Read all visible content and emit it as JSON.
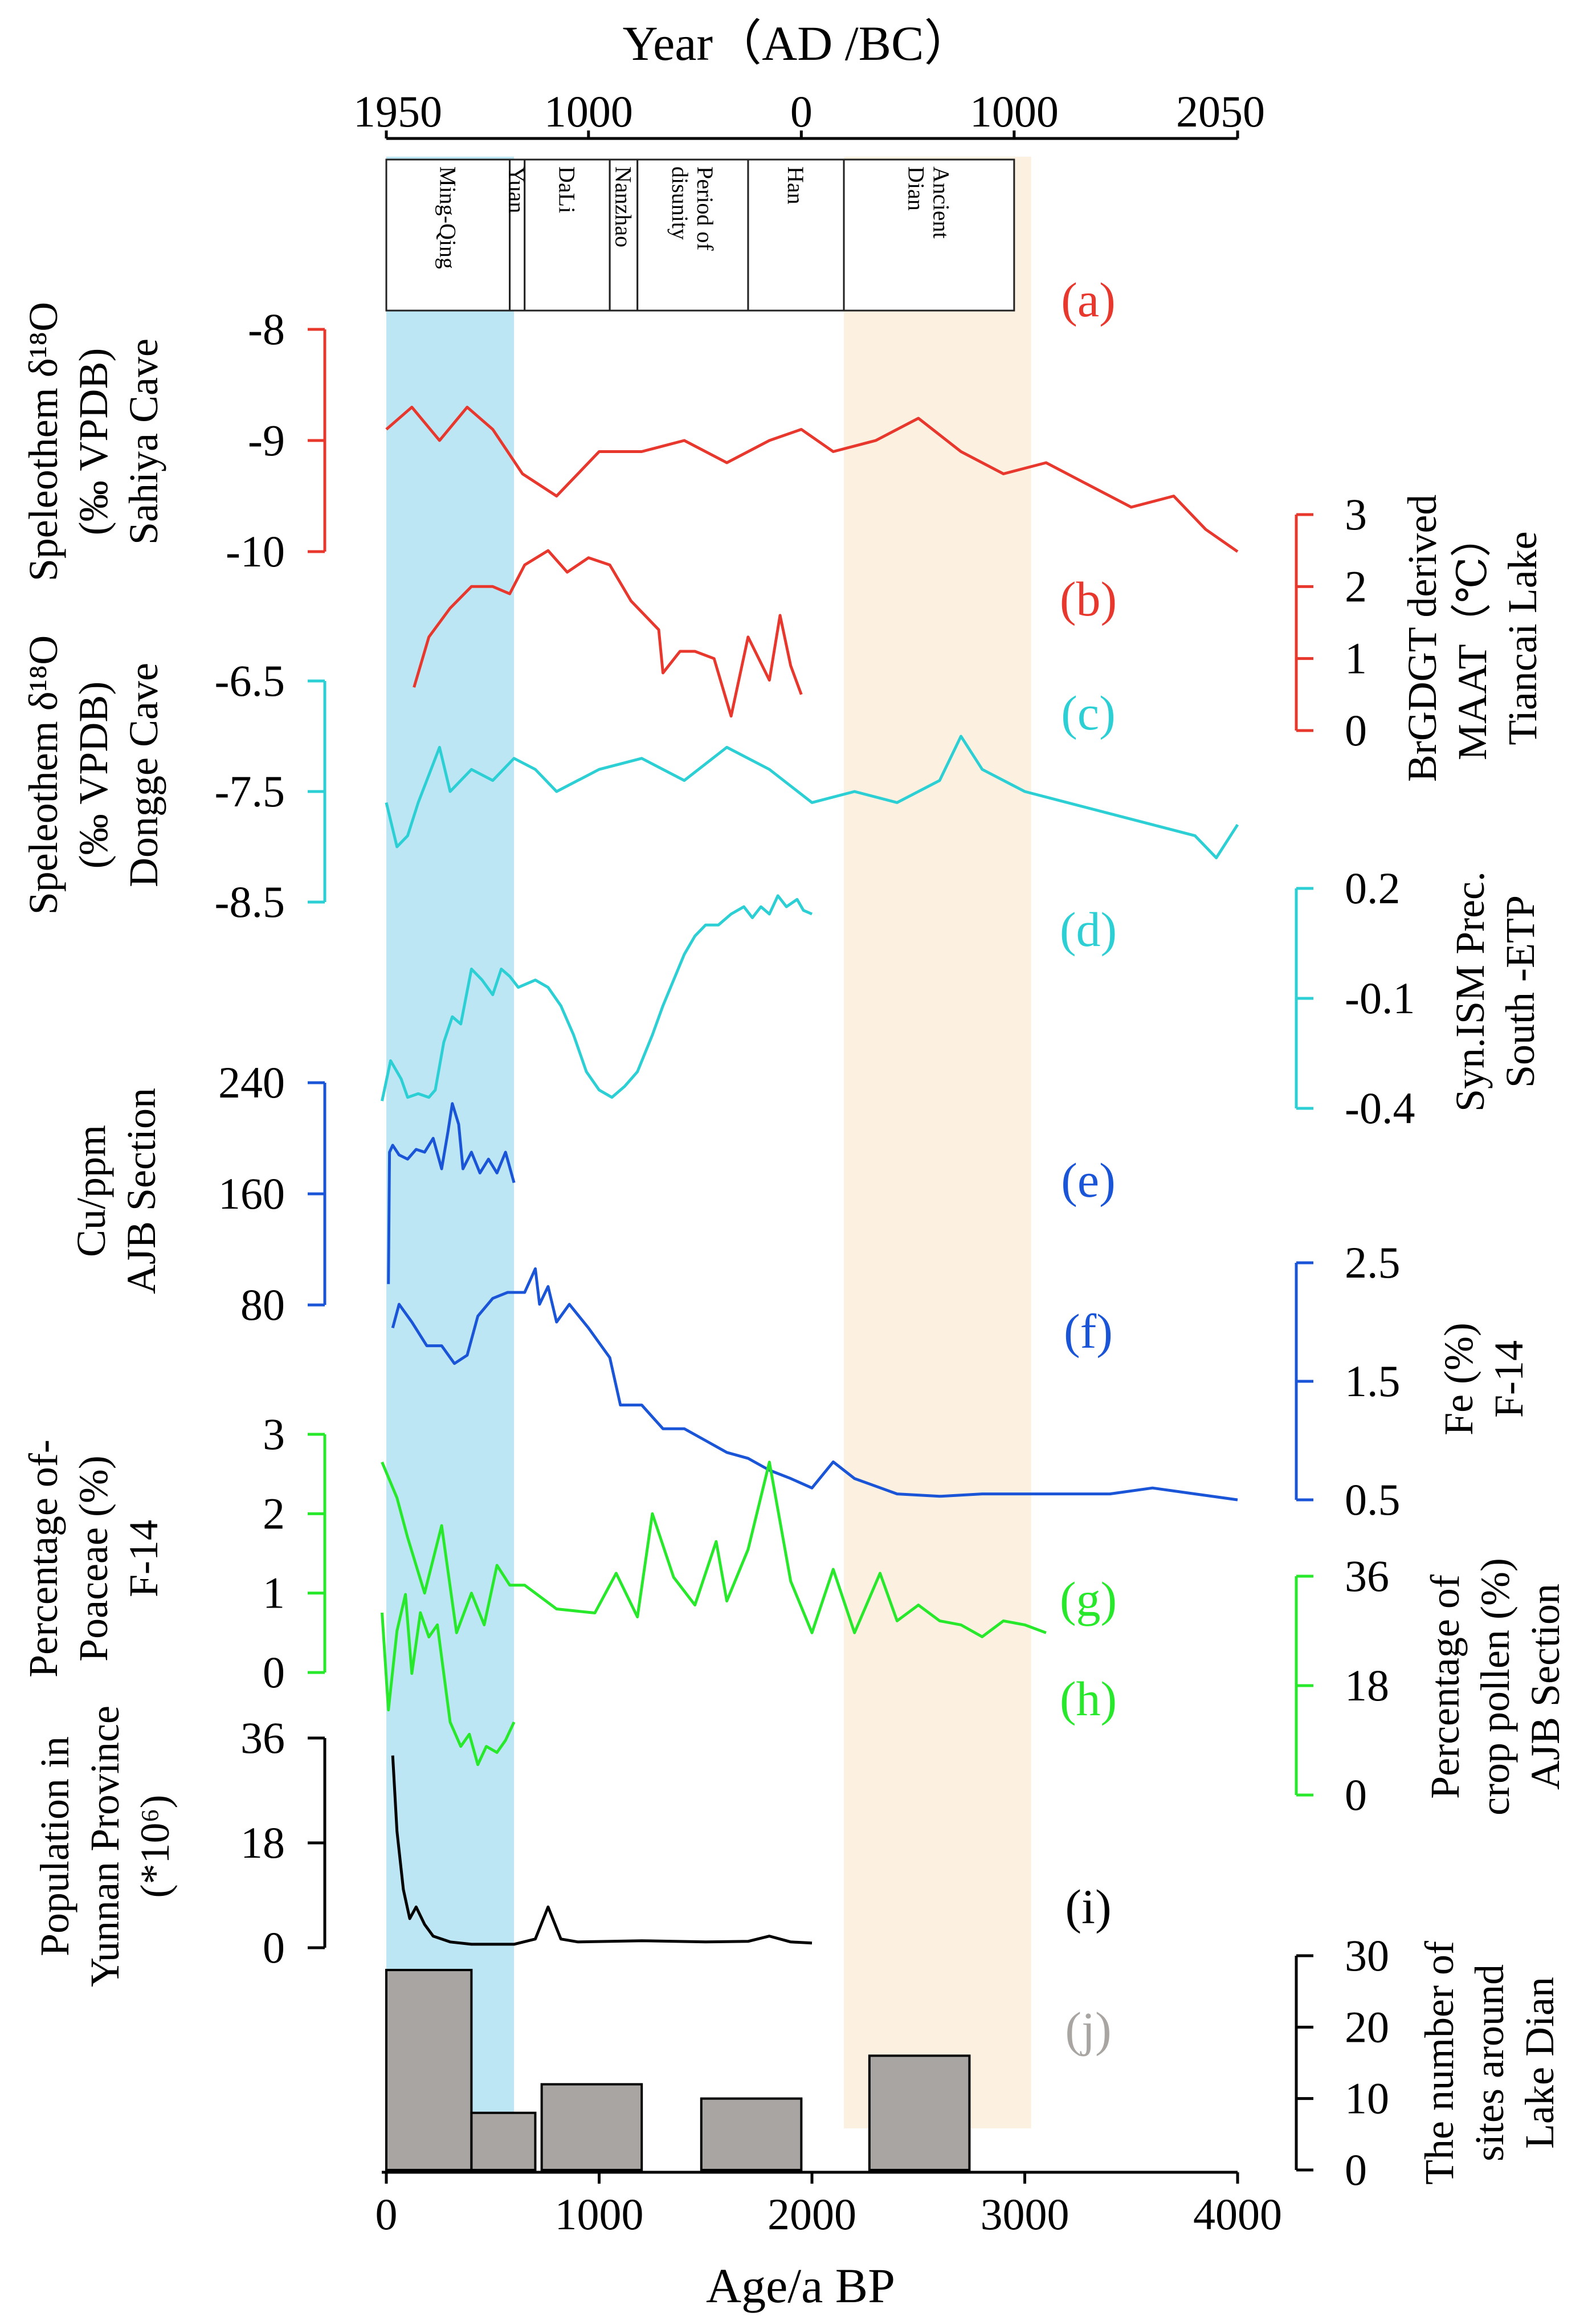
{
  "chart_data": {
    "type": "line",
    "title": "",
    "top_axis": {
      "title": "Year（AD /BC）",
      "tick_labels": [
        "1950",
        "1000",
        "0",
        "1000",
        "2050"
      ],
      "tick_ages_bp": [
        0,
        950,
        1950,
        2950,
        4000
      ]
    },
    "bottom_axis": {
      "label": "Age/a BP",
      "range": [
        0,
        4000
      ],
      "tick_labels": [
        "0",
        "1000",
        "2000",
        "3000",
        "4000"
      ],
      "ticks": [
        0,
        1000,
        2000,
        3000,
        4000
      ]
    },
    "periods": [
      {
        "label": "Ming-Qing",
        "start_bp": 0,
        "end_bp": 580
      },
      {
        "label": "Yuan",
        "start_bp": 580,
        "end_bp": 650
      },
      {
        "label": "DaLi",
        "start_bp": 650,
        "end_bp": 1050
      },
      {
        "label": "Nanzhao",
        "start_bp": 1050,
        "end_bp": 1180
      },
      {
        "label": "Period of disunity",
        "start_bp": 1180,
        "end_bp": 1700
      },
      {
        "label": "Han",
        "start_bp": 1700,
        "end_bp": 2150
      },
      {
        "label": "Ancient Dian",
        "start_bp": 2150,
        "end_bp": 2950
      }
    ],
    "shaded_intervals": [
      {
        "from_bp": 0,
        "to_bp": 600,
        "color": "#bde6f5"
      },
      {
        "from_bp": 2150,
        "to_bp": 3030,
        "color": "#fcf1e1"
      }
    ],
    "panels": [
      {
        "id": "a",
        "panel_label": "(a)",
        "ylabel": [
          "Speleothem δ¹⁸O",
          "(‰ VPDB)",
          "Sahiya Cave"
        ],
        "axis_side": "left",
        "ylim": [
          -8,
          -10
        ],
        "ticks": [
          -10,
          -9,
          -8
        ],
        "tick_labels": [
          "-10",
          "-9",
          "-8"
        ],
        "color": "#e8382e",
        "x": [
          0,
          120,
          250,
          380,
          500,
          640,
          800,
          900,
          1000,
          1200,
          1400,
          1600,
          1800,
          1950,
          2100,
          2300,
          2500,
          2700,
          2900,
          3100,
          3300,
          3500,
          3700,
          3850,
          4000
        ],
        "y": [
          -8.9,
          -8.7,
          -9.0,
          -8.7,
          -8.9,
          -9.3,
          -9.5,
          -9.3,
          -9.1,
          -9.1,
          -9.0,
          -9.2,
          -9.0,
          -8.9,
          -9.1,
          -9.0,
          -8.8,
          -9.1,
          -9.3,
          -9.2,
          -9.4,
          -9.6,
          -9.5,
          -9.8,
          -10.0
        ]
      },
      {
        "id": "b",
        "panel_label": "(b)",
        "ylabel": [
          "BrGDGT derived",
          "MAAT（℃）",
          "Tiancai Lake"
        ],
        "axis_side": "right",
        "ylim": [
          0,
          3
        ],
        "ticks": [
          0,
          1,
          2,
          3
        ],
        "tick_labels": [
          "0",
          "1",
          "2",
          "3"
        ],
        "color": "#e8382e",
        "x": [
          130,
          200,
          300,
          400,
          500,
          580,
          650,
          760,
          850,
          950,
          1050,
          1150,
          1280,
          1300,
          1380,
          1450,
          1540,
          1620,
          1700,
          1800,
          1850,
          1900,
          1950
        ],
        "y": [
          0.6,
          1.3,
          1.7,
          2.0,
          2.0,
          1.9,
          2.3,
          2.5,
          2.2,
          2.4,
          2.3,
          1.8,
          1.4,
          0.8,
          1.1,
          1.1,
          1.0,
          0.2,
          1.3,
          0.7,
          1.6,
          0.9,
          0.5
        ]
      },
      {
        "id": "c",
        "panel_label": "(c)",
        "ylabel": [
          "Speleothem δ¹⁸O",
          "(‰ VPDB)",
          "Dongge Cave"
        ],
        "axis_side": "left",
        "ylim": [
          -6.5,
          -8.5
        ],
        "ticks": [
          -8.5,
          -7.5,
          -6.5
        ],
        "tick_labels": [
          "-8.5",
          "-7.5",
          "-6.5"
        ],
        "color": "#2ccfd3",
        "x": [
          0,
          50,
          100,
          150,
          250,
          300,
          400,
          500,
          600,
          700,
          800,
          1000,
          1200,
          1400,
          1600,
          1800,
          2000,
          2200,
          2400,
          2600,
          2700,
          2800,
          3000,
          3200,
          3400,
          3600,
          3800,
          3900,
          4000
        ],
        "y": [
          -7.6,
          -8.0,
          -7.9,
          -7.6,
          -7.1,
          -7.5,
          -7.3,
          -7.4,
          -7.2,
          -7.3,
          -7.5,
          -7.3,
          -7.2,
          -7.4,
          -7.1,
          -7.3,
          -7.6,
          -7.5,
          -7.6,
          -7.4,
          -7.0,
          -7.3,
          -7.5,
          -7.6,
          -7.7,
          -7.8,
          -7.9,
          -8.1,
          -7.8
        ]
      },
      {
        "id": "d",
        "panel_label": "(d)",
        "ylabel": [
          "Syn.ISM Prec.",
          "South -ETP"
        ],
        "axis_side": "right",
        "ylim": [
          -0.4,
          0.2
        ],
        "ticks": [
          -0.4,
          -0.1,
          0.2
        ],
        "tick_labels": [
          "-0.4",
          "-0.1",
          "0.2"
        ],
        "color": "#2ccfd3",
        "x": [
          -20,
          20,
          70,
          100,
          150,
          200,
          230,
          270,
          310,
          350,
          400,
          450,
          500,
          540,
          580,
          620,
          700,
          760,
          820,
          880,
          940,
          1000,
          1060,
          1120,
          1180,
          1250,
          1300,
          1400,
          1450,
          1500,
          1560,
          1620,
          1680,
          1720,
          1760,
          1800,
          1840,
          1880,
          1930,
          1960,
          2000
        ],
        "y": [
          -0.38,
          -0.27,
          -0.32,
          -0.37,
          -0.36,
          -0.37,
          -0.35,
          -0.22,
          -0.15,
          -0.17,
          -0.02,
          -0.05,
          -0.09,
          -0.02,
          -0.04,
          -0.07,
          -0.05,
          -0.07,
          -0.12,
          -0.2,
          -0.3,
          -0.35,
          -0.37,
          -0.34,
          -0.3,
          -0.2,
          -0.12,
          0.02,
          0.07,
          0.1,
          0.1,
          0.13,
          0.15,
          0.12,
          0.15,
          0.13,
          0.18,
          0.15,
          0.17,
          0.14,
          0.13
        ]
      },
      {
        "id": "e",
        "panel_label": "(e)",
        "ylabel": [
          "Cu/ppm",
          "AJB Section"
        ],
        "axis_side": "left",
        "ylim": [
          80,
          240
        ],
        "ticks": [
          80,
          160,
          240
        ],
        "tick_labels": [
          "80",
          "160",
          "240"
        ],
        "color": "#1a55d8",
        "x": [
          10,
          15,
          30,
          60,
          100,
          140,
          180,
          220,
          260,
          290,
          310,
          340,
          360,
          400,
          440,
          480,
          520,
          560,
          600
        ],
        "y": [
          95,
          190,
          195,
          188,
          185,
          192,
          190,
          200,
          178,
          205,
          225,
          210,
          178,
          190,
          175,
          185,
          175,
          190,
          168
        ]
      },
      {
        "id": "f",
        "panel_label": "(f)",
        "ylabel": [
          "Fe (%)",
          "F-14"
        ],
        "axis_side": "right",
        "ylim": [
          0.5,
          2.5
        ],
        "ticks": [
          0.5,
          1.5,
          2.5
        ],
        "tick_labels": [
          "0.5",
          "1.5",
          "2.5"
        ],
        "color": "#1a55d8",
        "x": [
          30,
          60,
          120,
          190,
          260,
          320,
          380,
          430,
          500,
          570,
          650,
          700,
          720,
          760,
          800,
          860,
          950,
          1050,
          1100,
          1200,
          1300,
          1400,
          1500,
          1600,
          1700,
          1800,
          1900,
          2000,
          2100,
          2200,
          2400,
          2600,
          2800,
          3000,
          3200,
          3400,
          3600,
          3800,
          4000
        ],
        "y": [
          1.95,
          2.15,
          2.0,
          1.8,
          1.8,
          1.65,
          1.72,
          2.05,
          2.2,
          2.25,
          2.25,
          2.45,
          2.15,
          2.3,
          2.0,
          2.15,
          1.95,
          1.7,
          1.3,
          1.3,
          1.1,
          1.1,
          1.0,
          0.9,
          0.85,
          0.75,
          0.68,
          0.6,
          0.82,
          0.68,
          0.55,
          0.53,
          0.55,
          0.55,
          0.55,
          0.55,
          0.6,
          0.55,
          0.5
        ]
      },
      {
        "id": "g",
        "panel_label": "(g)",
        "ylabel": [
          "Percentage of-",
          "Poaceae (%)",
          "F-14"
        ],
        "axis_side": "left",
        "ylim": [
          0,
          3
        ],
        "ticks": [
          0,
          1,
          2,
          3
        ],
        "tick_labels": [
          "0",
          "1",
          "2",
          "3"
        ],
        "color": "#27e82a",
        "x": [
          -20,
          50,
          100,
          180,
          260,
          330,
          400,
          460,
          520,
          580,
          650,
          800,
          980,
          1080,
          1180,
          1250,
          1350,
          1450,
          1550,
          1600,
          1700,
          1800,
          1900,
          2000,
          2100,
          2200,
          2320,
          2400,
          2500,
          2600,
          2700,
          2800,
          2900,
          3000,
          3100
        ],
        "y": [
          2.65,
          2.2,
          1.7,
          1.0,
          1.85,
          0.5,
          1.0,
          0.6,
          1.35,
          1.1,
          1.1,
          0.8,
          0.75,
          1.25,
          0.7,
          2.0,
          1.2,
          0.85,
          1.65,
          0.9,
          1.55,
          2.65,
          1.15,
          0.5,
          1.3,
          0.5,
          1.25,
          0.65,
          0.85,
          0.65,
          0.6,
          0.45,
          0.65,
          0.6,
          0.5
        ]
      },
      {
        "id": "h",
        "panel_label": "(h)",
        "ylabel": [
          "Percentage of",
          "crop pollen (%)",
          "AJB Section"
        ],
        "axis_side": "right",
        "ylim": [
          0,
          36
        ],
        "ticks": [
          0,
          18,
          36
        ],
        "tick_labels": [
          "0",
          "18",
          "36"
        ],
        "color": "#27e82a",
        "x": [
          -20,
          10,
          50,
          90,
          120,
          160,
          200,
          240,
          270,
          300,
          350,
          390,
          430,
          470,
          520,
          560,
          600
        ],
        "y": [
          30,
          14,
          27,
          33,
          20,
          30,
          26,
          28,
          20,
          12,
          8,
          10,
          5,
          8,
          7,
          9,
          12
        ]
      },
      {
        "id": "i",
        "panel_label": "(i)",
        "ylabel": [
          "Population in",
          "Yunnan Province",
          "(*10⁶)"
        ],
        "axis_side": "left",
        "ylim": [
          0,
          36
        ],
        "ticks": [
          0,
          18,
          36
        ],
        "tick_labels": [
          "0",
          "18",
          "36"
        ],
        "color": "#000000",
        "x": [
          30,
          50,
          80,
          110,
          140,
          180,
          220,
          300,
          400,
          600,
          700,
          760,
          820,
          900,
          1200,
          1500,
          1700,
          1800,
          1900,
          2000
        ],
        "y": [
          33,
          20,
          10,
          5,
          7,
          4,
          2,
          1,
          0.6,
          0.6,
          1.5,
          7,
          1.5,
          1,
          1.2,
          1.0,
          1.1,
          2.0,
          1.0,
          0.8
        ]
      },
      {
        "id": "j",
        "panel_label": "(j)",
        "type": "bar",
        "ylabel": [
          "The number of",
          "sites around",
          "Lake Dian"
        ],
        "axis_side": "right",
        "ylim": [
          0,
          30
        ],
        "ticks": [
          0,
          10,
          20,
          30
        ],
        "tick_labels": [
          "0",
          "10",
          "20",
          "30"
        ],
        "color": "#a8a5a2",
        "bars": [
          {
            "from": 0,
            "to": 400,
            "value": 28
          },
          {
            "from": 400,
            "to": 700,
            "value": 8
          },
          {
            "from": 730,
            "to": 1200,
            "value": 12
          },
          {
            "from": 1480,
            "to": 1950,
            "value": 10
          },
          {
            "from": 2270,
            "to": 2740,
            "value": 16
          }
        ]
      }
    ]
  }
}
